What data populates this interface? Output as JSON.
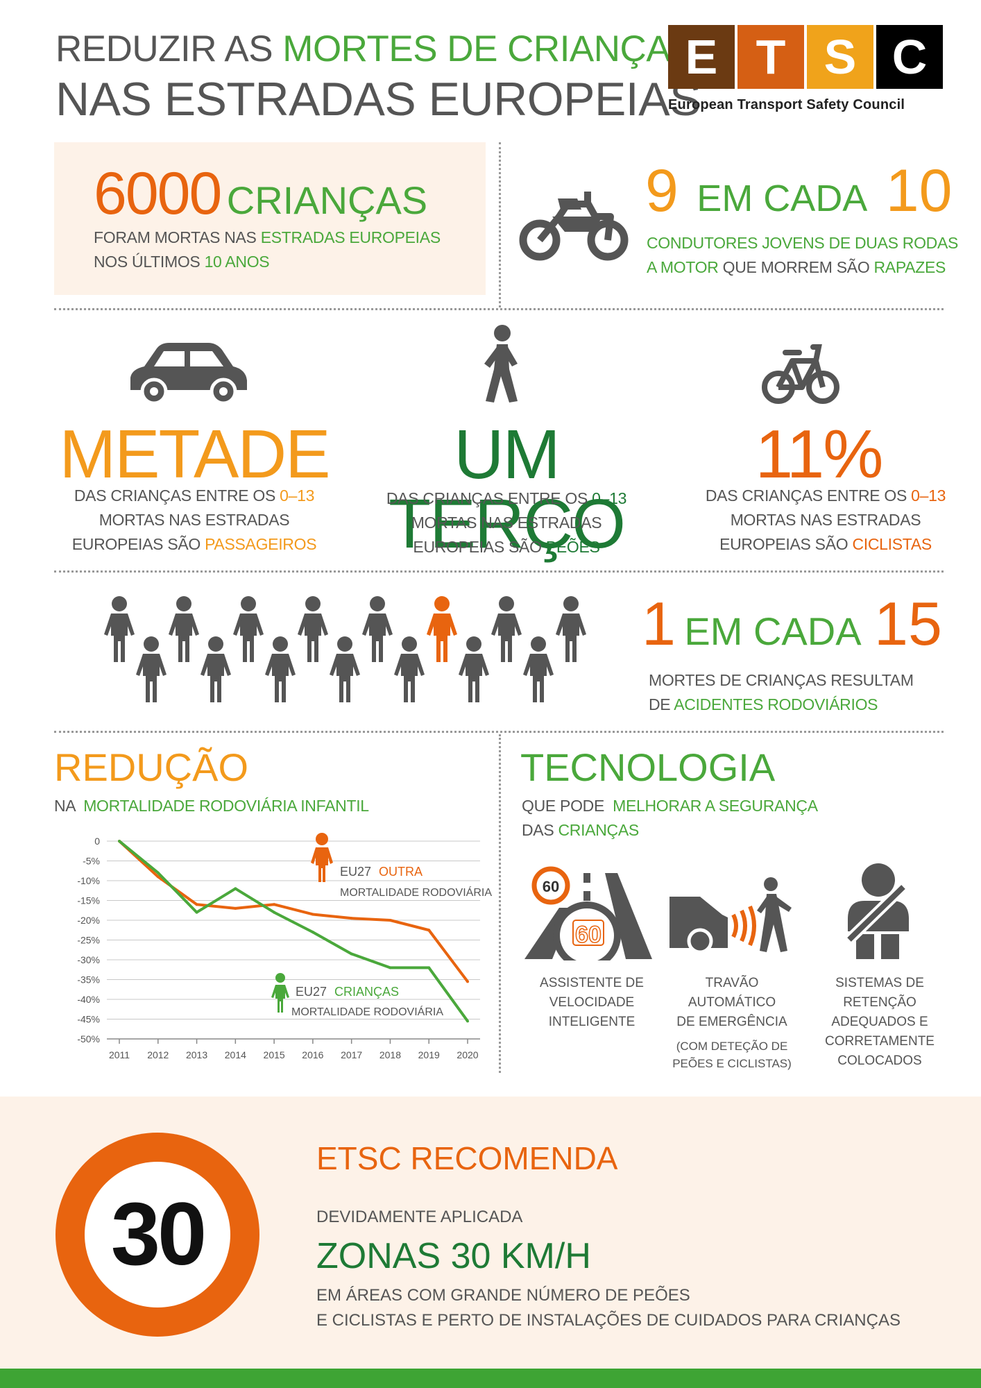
{
  "header": {
    "title_part1": "REDUZIR AS",
    "title_part2": "MORTES DE CRIANÇAS",
    "title_line2": "NAS ESTRADAS EUROPEIAS"
  },
  "logo": {
    "letters": [
      "E",
      "T",
      "S",
      "C"
    ],
    "colors": [
      "#6b3a12",
      "#d55f14",
      "#f0a31b",
      "#000000"
    ],
    "subtitle": "European Transport Safety Council"
  },
  "stat_children": {
    "number": "6000",
    "unit": "CRIANÇAS",
    "line1_a": "FORAM MORTAS NAS",
    "line1_b": "ESTRADAS EUROPEIAS",
    "line2_a": "NOS ÚLTIMOS",
    "line2_b": "10 ANOS"
  },
  "stat_riders": {
    "icon": "motorcycle-icon",
    "num1": "9",
    "mid": "EM CADA",
    "num2": "10",
    "line1": "CONDUTORES JOVENS DE DUAS RODAS",
    "line2_a": "A MOTOR",
    "line2_b": "QUE MORREM SÃO",
    "line2_c": "RAPAZES"
  },
  "stat_passengers": {
    "icon": "car-icon",
    "big": "METADE",
    "line1_a": "DAS CRIANÇAS ENTRE OS",
    "line1_b": "0–13",
    "line2": "MORTAS NAS ESTRADAS",
    "line3_a": "EUROPEIAS SÃO",
    "line3_b": "PASSAGEIROS"
  },
  "stat_pedestrians": {
    "icon": "pedestrian-icon",
    "big": "UM TERÇO",
    "line1_a": "DAS CRIANÇAS ENTRE OS",
    "line1_b": "0–13",
    "line2": "MORTAS NAS ESTRADAS",
    "line3_a": "EUROPEIAS SÃO",
    "line3_b": "PEÕES"
  },
  "stat_cyclists": {
    "icon": "bicycle-icon",
    "big": "11%",
    "line1_a": "DAS CRIANÇAS ENTRE OS",
    "line1_b": "0–13",
    "line2": "MORTAS NAS ESTRADAS",
    "line3_a": "EUROPEIAS SÃO",
    "line3_b": "CICLISTAS"
  },
  "stat_ratio": {
    "num1": "1",
    "mid": "EM CADA",
    "num2": "15",
    "line1": "MORTES DE CRIANÇAS RESULTAM",
    "line2_a": "DE",
    "line2_b": "ACIDENTES RODOVIÁRIOS",
    "figures_total": 15,
    "figures_highlighted": 1
  },
  "reduction": {
    "title": "REDUÇÃO",
    "subtitle_a": "NA",
    "subtitle_b": "MORTALIDADE RODOVIÁRIA INFANTIL"
  },
  "chart_data": {
    "type": "line",
    "title": "REDUÇÃO",
    "subtitle": "NA MORTALIDADE RODOVIÁRIA INFANTIL",
    "x": [
      "2011",
      "2012",
      "2013",
      "2014",
      "2015",
      "2016",
      "2017",
      "2018",
      "2019",
      "2020"
    ],
    "y_ticks": [
      "0",
      "-5%",
      "-10%",
      "-15%",
      "-20%",
      "-25%",
      "-30%",
      "-35%",
      "-40%",
      "-45%",
      "-50%"
    ],
    "ylim": [
      -50,
      0
    ],
    "grid": true,
    "series": [
      {
        "name_a": "EU27",
        "name_b": "OUTRA",
        "name_c": "MORTALIDADE RODOVIÁRIA",
        "color": "#e8640f",
        "values": [
          0,
          -9,
          -16,
          -17,
          -16,
          -18.5,
          -19.5,
          -20,
          -22.5,
          -35.5
        ]
      },
      {
        "name_a": "EU27",
        "name_b": "CRIANÇAS",
        "name_c": "MORTALIDADE RODOVIÁRIA",
        "color": "#4aa83b",
        "values": [
          0,
          -8,
          -18,
          -12,
          -18,
          -23,
          -28.5,
          -32,
          -32,
          -45.5
        ]
      }
    ]
  },
  "technology": {
    "title": "TECNOLOGIA",
    "subtitle_a": "QUE PODE",
    "subtitle_b": "MELHORAR A SEGURANÇA",
    "subtitle_c": "DAS",
    "subtitle_d": "CRIANÇAS",
    "items": [
      {
        "icon": "speed-assist-icon",
        "sign_a": "60",
        "sign_b": "60",
        "l1": "ASSISTENTE DE",
        "l2": "VELOCIDADE",
        "l3": "INTELIGENTE"
      },
      {
        "icon": "emergency-brake-icon",
        "l1": "TRAVÃO",
        "l2": "AUTOMÁTICO",
        "l3": "DE EMERGÊNCIA",
        "n1": "(COM DETEÇÃO DE",
        "n2": "PEÕES E CICLISTAS)"
      },
      {
        "icon": "seatbelt-icon",
        "l1": "SISTEMAS DE",
        "l2": "RETENÇÃO",
        "l3": "ADEQUADOS E",
        "l4": "CORRETAMENTE",
        "l5": "COLOCADOS"
      }
    ]
  },
  "recommend": {
    "sign_value": "30",
    "title": "ETSC RECOMENDA",
    "line1": "DEVIDAMENTE APLICADA",
    "headline": "ZONAS 30 KM/H",
    "line2": "EM ÁREAS COM GRANDE NÚMERO DE PEÕES",
    "line3": "E CICLISTAS E PERTO DE INSTALAÇÕES DE CUIDADOS PARA CRIANÇAS"
  },
  "colors": {
    "orange": "#e8640f",
    "amber": "#f39a1c",
    "green": "#4aa83b",
    "dark_green": "#1e7a35",
    "grey": "#555555",
    "peach": "#fdf2e8",
    "footer_green": "#3ea434"
  }
}
